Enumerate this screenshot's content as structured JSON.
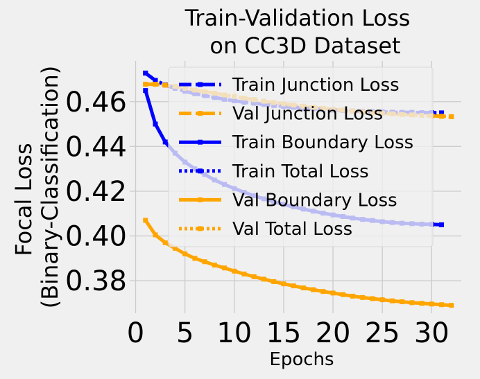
{
  "chart_data": {
    "type": "line",
    "title": [
      "Train-Validation Loss",
      "on CC3D Dataset"
    ],
    "xlabel": "Epochs",
    "ylabel": [
      "Focal Loss",
      "(Binary-Classification)"
    ],
    "xlim": [
      -0.6,
      33.0
    ],
    "ylim": [
      0.3655,
      0.4782
    ],
    "xticks": [
      0,
      5,
      10,
      15,
      20,
      25,
      30
    ],
    "yticks": [
      0.38,
      0.4,
      0.42,
      0.44,
      0.46
    ],
    "ytick_labels": [
      "0.38",
      "0.40",
      "0.42",
      "0.44",
      "0.46"
    ],
    "grid": true,
    "legend_position": "upper right",
    "series": [
      {
        "name": "Train Junction Loss",
        "color": "#0000ff",
        "style": "dashdot",
        "x": [
          1,
          2,
          3,
          4,
          5,
          6,
          7,
          8,
          9,
          10,
          11,
          12,
          13,
          14,
          15,
          16,
          17,
          18,
          19,
          20,
          21,
          22,
          23,
          24,
          25,
          26,
          27,
          28,
          29,
          30,
          31
        ],
        "values": [
          0.4728,
          0.4695,
          0.4675,
          0.466,
          0.4647,
          0.4636,
          0.4627,
          0.4619,
          0.4611,
          0.4604,
          0.4598,
          0.4593,
          0.4588,
          0.4583,
          0.4579,
          0.4575,
          0.4572,
          0.4569,
          0.4566,
          0.4563,
          0.4561,
          0.4558,
          0.4557,
          0.4555,
          0.4554,
          0.4553,
          0.4552,
          0.4552,
          0.4551,
          0.4551,
          0.455
        ]
      },
      {
        "name": "Val Junction Loss",
        "color": "#ffa500",
        "style": "dashdot",
        "x": [
          1,
          2,
          3,
          4,
          5,
          6,
          7,
          8,
          9,
          10,
          11,
          12,
          13,
          14,
          15,
          16,
          17,
          18,
          19,
          20,
          21,
          22,
          23,
          24,
          25,
          26,
          27,
          28,
          29,
          30,
          31,
          32
        ],
        "values": [
          0.4678,
          0.4678,
          0.4674,
          0.4668,
          0.466,
          0.4652,
          0.4645,
          0.4638,
          0.463,
          0.4623,
          0.4616,
          0.4609,
          0.4602,
          0.4596,
          0.459,
          0.4585,
          0.458,
          0.4575,
          0.457,
          0.4566,
          0.4562,
          0.4558,
          0.4555,
          0.4552,
          0.4549,
          0.4546,
          0.4543,
          0.4541,
          0.4539,
          0.4537,
          0.4535,
          0.4533
        ]
      },
      {
        "name": "Train Boundary Loss",
        "color": "#0000ff",
        "style": "solid",
        "x": [
          1,
          2,
          3,
          4,
          5,
          6,
          7,
          8,
          9,
          10,
          11,
          12,
          13,
          14,
          15,
          16,
          17,
          18,
          19,
          20,
          21,
          22,
          23,
          24,
          25,
          26,
          27,
          28,
          29,
          30,
          31
        ],
        "values": [
          0.465,
          0.45,
          0.442,
          0.437,
          0.433,
          0.43,
          0.4275,
          0.425,
          0.423,
          0.4212,
          0.4195,
          0.418,
          0.4166,
          0.4153,
          0.4141,
          0.413,
          0.412,
          0.4111,
          0.4102,
          0.4094,
          0.4087,
          0.408,
          0.4074,
          0.4069,
          0.4064,
          0.406,
          0.4057,
          0.4055,
          0.4053,
          0.4052,
          0.405
        ]
      },
      {
        "name": "Train Total Loss",
        "color": "#0000ff",
        "style": "dotted",
        "x": [
          1,
          2,
          3,
          4,
          5,
          6,
          7,
          8,
          9,
          10,
          11,
          12,
          13,
          14,
          15,
          16,
          17,
          18,
          19,
          20,
          21,
          22,
          23,
          24,
          25,
          26,
          27,
          28,
          29,
          30,
          31
        ],
        "values": [
          0.4728,
          0.4695,
          0.4675,
          0.466,
          0.4647,
          0.4636,
          0.4627,
          0.4619,
          0.4611,
          0.4604,
          0.4598,
          0.4593,
          0.4588,
          0.4583,
          0.4579,
          0.4575,
          0.4572,
          0.4569,
          0.4566,
          0.4563,
          0.4561,
          0.4558,
          0.4557,
          0.4555,
          0.4554,
          0.4553,
          0.4552,
          0.4552,
          0.4551,
          0.4551,
          0.455
        ]
      },
      {
        "name": "Val Boundary Loss",
        "color": "#ffa500",
        "style": "solid",
        "x": [
          1,
          2,
          3,
          4,
          5,
          6,
          7,
          8,
          9,
          10,
          11,
          12,
          13,
          14,
          15,
          16,
          17,
          18,
          19,
          20,
          21,
          22,
          23,
          24,
          25,
          26,
          27,
          28,
          29,
          30,
          31,
          32
        ],
        "values": [
          0.407,
          0.4005,
          0.397,
          0.3945,
          0.392,
          0.39,
          0.3885,
          0.387,
          0.3857,
          0.3843,
          0.383,
          0.3818,
          0.3807,
          0.3796,
          0.3786,
          0.3777,
          0.3768,
          0.376,
          0.3752,
          0.3745,
          0.3738,
          0.3731,
          0.3725,
          0.372,
          0.3715,
          0.371,
          0.3706,
          0.3702,
          0.3699,
          0.3696,
          0.3693,
          0.369
        ]
      },
      {
        "name": "Val Total Loss",
        "color": "#ffa500",
        "style": "dotted",
        "x": [
          1,
          2,
          3,
          4,
          5,
          6,
          7,
          8,
          9,
          10,
          11,
          12,
          13,
          14,
          15,
          16,
          17,
          18,
          19,
          20,
          21,
          22,
          23,
          24,
          25,
          26,
          27,
          28,
          29,
          30,
          31,
          32
        ],
        "values": [
          0.4678,
          0.4678,
          0.4674,
          0.4668,
          0.466,
          0.4652,
          0.4645,
          0.4638,
          0.463,
          0.4623,
          0.4616,
          0.4609,
          0.4602,
          0.4596,
          0.459,
          0.4585,
          0.458,
          0.4575,
          0.457,
          0.4566,
          0.4562,
          0.4558,
          0.4555,
          0.4552,
          0.4549,
          0.4546,
          0.4543,
          0.4541,
          0.4539,
          0.4537,
          0.4535,
          0.4533
        ]
      }
    ]
  }
}
